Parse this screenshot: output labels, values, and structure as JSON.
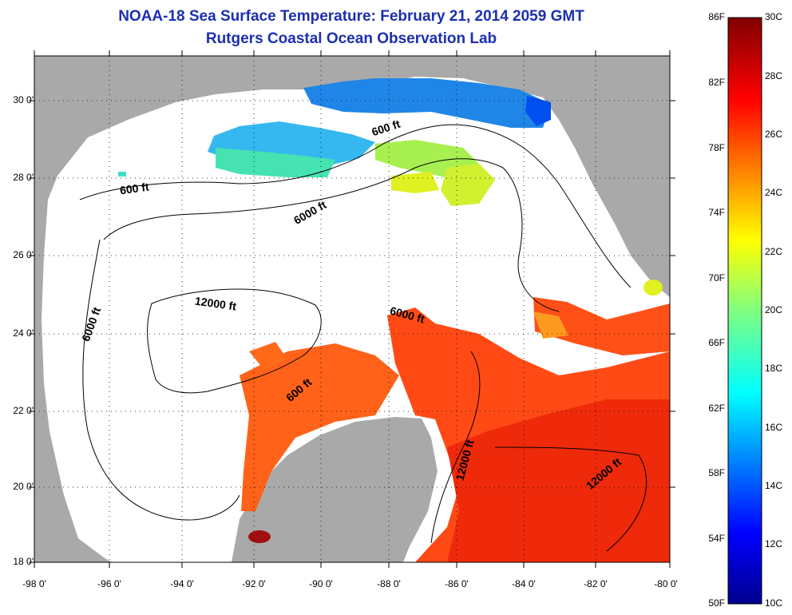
{
  "title": {
    "line1": "NOAA-18 Sea Surface Temperature:  February 21, 2014 2059 GMT",
    "line2": "Rutgers Coastal Ocean Observation Lab"
  },
  "colors": {
    "title": "#1c2fb0",
    "land": "#a9a9a9",
    "no_data": "#ffffff"
  },
  "map": {
    "lat_labels": [
      "30 0'",
      "28 0'",
      "26 0'",
      "24 0'",
      "22 0'",
      "20 0'",
      "18 0'"
    ],
    "lon_labels": [
      "-98 0'",
      "-96 0'",
      "-94 0'",
      "-92 0'",
      "-90 0'",
      "-88 0'",
      "-86 0'",
      "-84 0'",
      "-82 0'",
      "-80 0'"
    ],
    "contour_labels": [
      "600 ft",
      "600 ft",
      "6000 ft",
      "6000 ft",
      "12000 ft",
      "6000 ft",
      "600 ft",
      "12000 ft",
      "12000 ft"
    ]
  },
  "colorbar": {
    "fahrenheit": [
      "86F",
      "82F",
      "78F",
      "74F",
      "70F",
      "66F",
      "62F",
      "58F",
      "54F",
      "50F"
    ],
    "celsius": [
      "30C",
      "28C",
      "26C",
      "24C",
      "22C",
      "20C",
      "18C",
      "16C",
      "14C",
      "12C",
      "10C"
    ]
  }
}
